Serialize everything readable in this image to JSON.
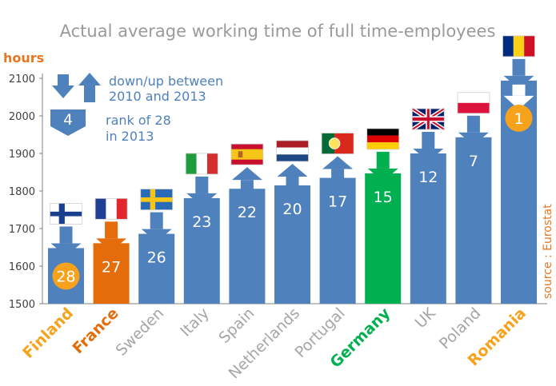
{
  "chart_data": {
    "type": "bar",
    "title": "Actual average working time of full time-employees",
    "ylabel": "hours",
    "ylim": [
      1500,
      2150
    ],
    "yticks": [
      1500,
      1600,
      1700,
      1800,
      1900,
      2000,
      2100
    ],
    "categories": [
      "Finland",
      "France",
      "Sweden",
      "Italy",
      "Spain",
      "Netherlands",
      "Portugal",
      "Germany",
      "UK",
      "Poland",
      "Romania"
    ],
    "values": [
      1648,
      1661,
      1686,
      1781,
      1806,
      1815,
      1835,
      1847,
      1900,
      1943,
      2094
    ],
    "ranks": [
      "28",
      "27",
      "26",
      "23",
      "22",
      "20",
      "17",
      "15",
      "12",
      "7",
      "1"
    ],
    "trend": [
      "down",
      "down",
      "down",
      "down",
      "up",
      "up",
      "up",
      "down",
      "down",
      "down",
      "down"
    ],
    "flags": [
      "finland-flag",
      "france-flag",
      "sweden-flag",
      "italy-flag",
      "spain-flag",
      "netherlands-flag",
      "portugal-flag",
      "germany-flag",
      "uk-flag",
      "poland-flag",
      "romania-flag"
    ],
    "bar_colors": [
      "#4f81bd",
      "#e46c0a",
      "#4f81bd",
      "#4f81bd",
      "#4f81bd",
      "#4f81bd",
      "#4f81bd",
      "#00b050",
      "#4f81bd",
      "#4f81bd",
      "#4f81bd"
    ],
    "label_colors": [
      "#f7a21c",
      "#e46c0a",
      "#a6a6a6",
      "#a6a6a6",
      "#a6a6a6",
      "#a6a6a6",
      "#a6a6a6",
      "#00b050",
      "#a6a6a6",
      "#a6a6a6",
      "#f7a21c"
    ],
    "rank_circle": [
      true,
      false,
      false,
      false,
      false,
      false,
      false,
      false,
      false,
      false,
      true
    ],
    "circle_color": "#f7a21c",
    "legend": {
      "arrows_line1": "down/up between",
      "arrows_line2": "2010 and 2013",
      "rank_example": "4",
      "rank_line1": "rank of 28",
      "rank_line2": "in 2013"
    },
    "source": "source : Eurostat",
    "grid": false
  }
}
